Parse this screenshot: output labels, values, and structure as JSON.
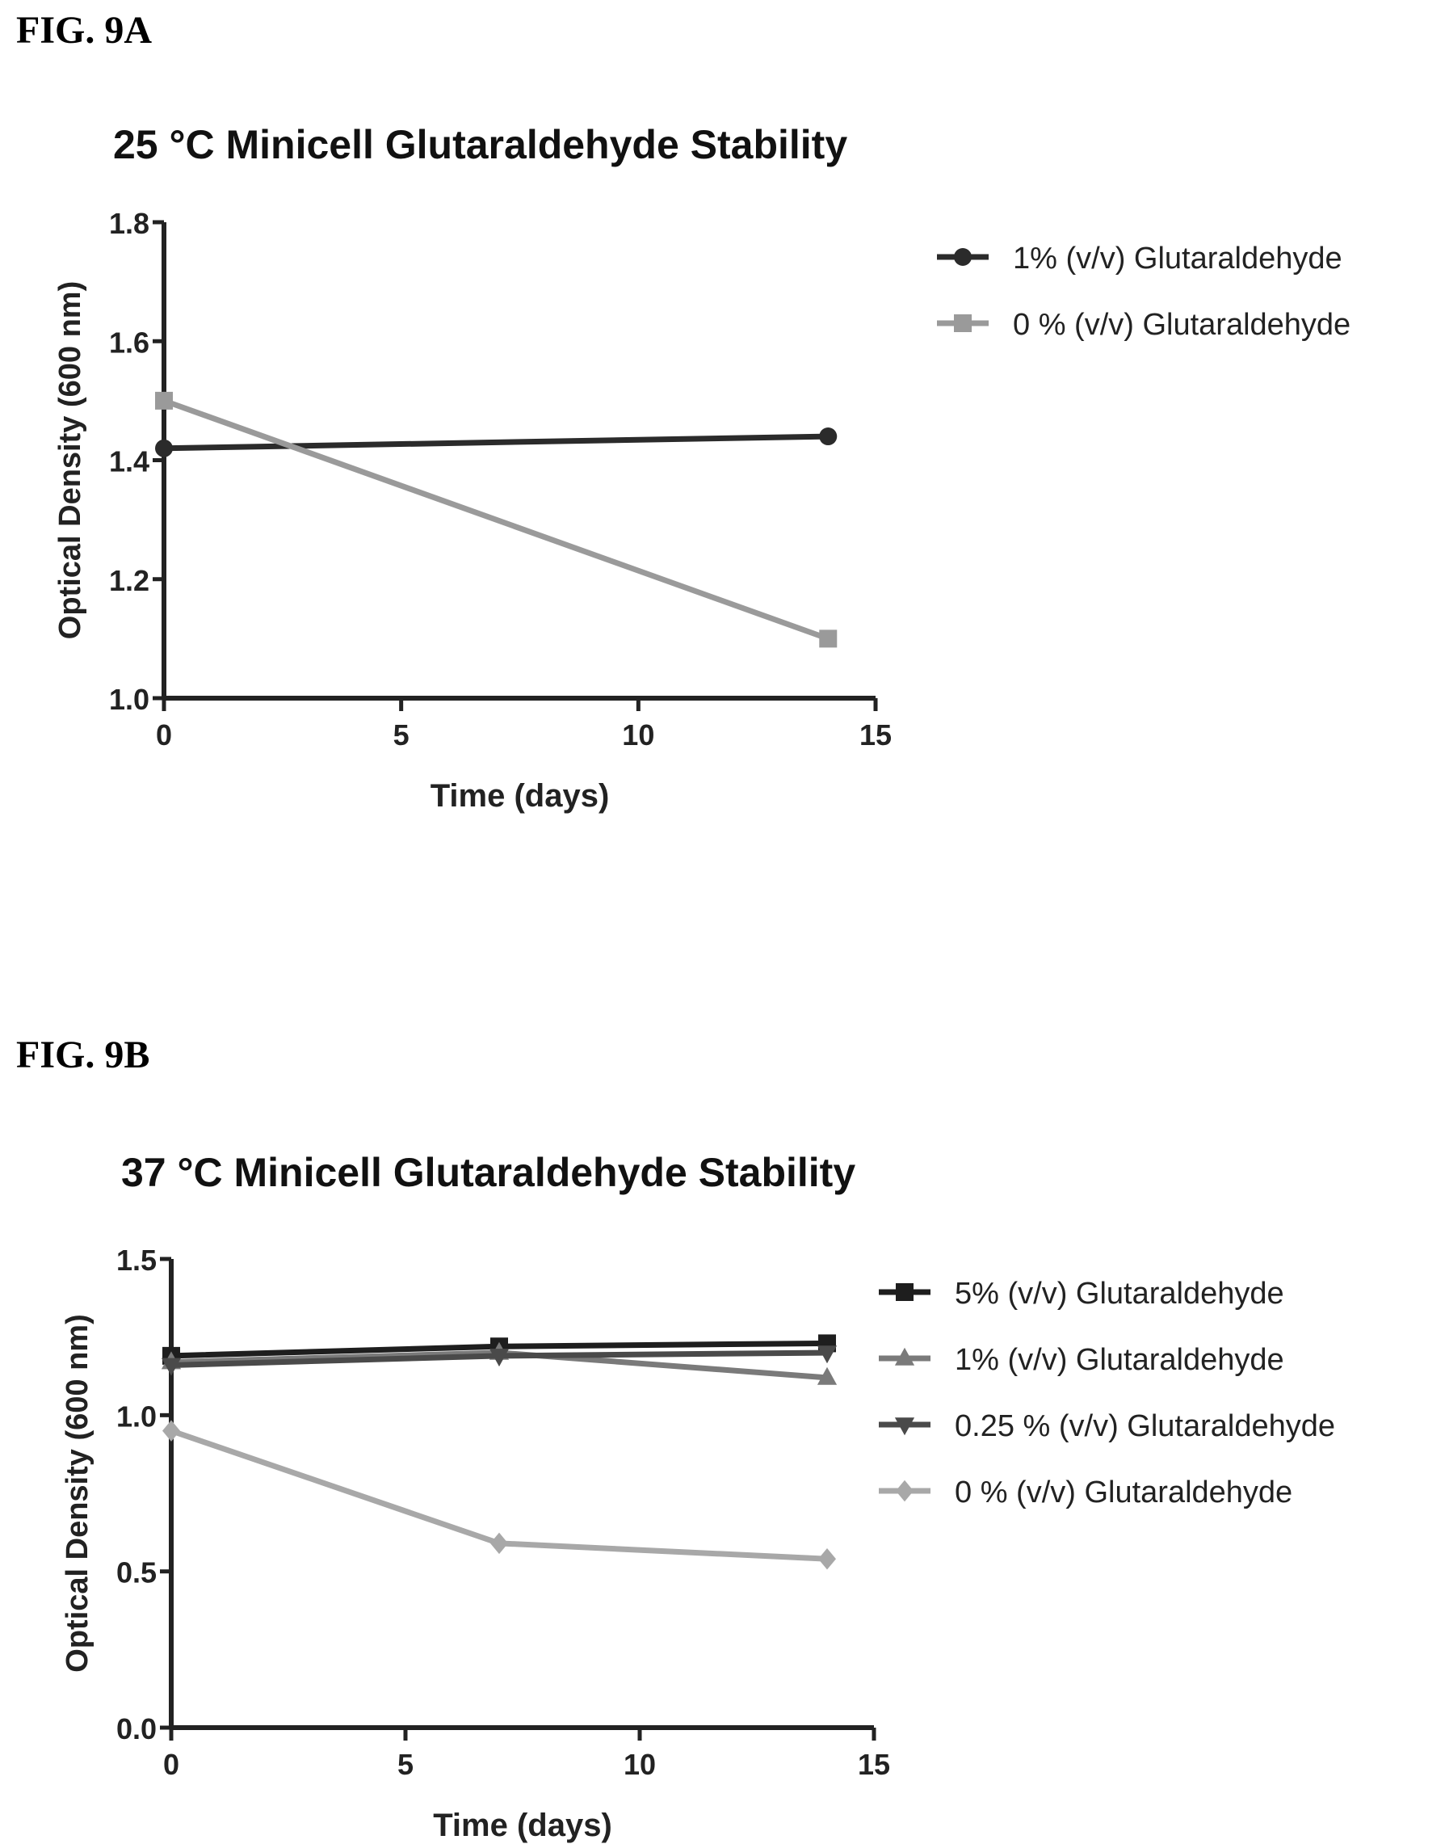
{
  "figures": [
    {
      "label": "FIG. 9A",
      "title": "25 °C Minicell Glutaraldehyde Stability",
      "chart_data": {
        "type": "line",
        "title": "25 °C Minicell Glutaraldehyde Stability",
        "xlabel": "Time (days)",
        "ylabel": "Optical Density (600 nm)",
        "xlim": [
          0,
          15
        ],
        "ylim": [
          1.0,
          1.8
        ],
        "xticks": [
          "0",
          "5",
          "10",
          "15"
        ],
        "yticks": [
          "1.0",
          "1.2",
          "1.4",
          "1.6",
          "1.8"
        ],
        "grid": false,
        "legend_position": "right",
        "series": [
          {
            "name": "1% (v/v) Glutaraldehyde",
            "marker": "circle",
            "color": "#2b2b2b",
            "x": [
              0,
              14
            ],
            "y": [
              1.42,
              1.44
            ]
          },
          {
            "name": "0 % (v/v) Glutaraldehyde",
            "marker": "square",
            "color": "#9a9a9a",
            "x": [
              0,
              14
            ],
            "y": [
              1.5,
              1.1
            ]
          }
        ]
      }
    },
    {
      "label": "FIG. 9B",
      "title": "37 °C Minicell Glutaraldehyde Stability",
      "chart_data": {
        "type": "line",
        "title": "37 °C Minicell Glutaraldehyde Stability",
        "xlabel": "Time (days)",
        "ylabel": "Optical Density (600 nm)",
        "xlim": [
          0,
          15
        ],
        "ylim": [
          0.0,
          1.5
        ],
        "xticks": [
          "0",
          "5",
          "10",
          "15"
        ],
        "yticks": [
          "0.0",
          "0.5",
          "1.0",
          "1.5"
        ],
        "grid": false,
        "legend_position": "right",
        "series": [
          {
            "name": "5% (v/v) Glutaraldehyde",
            "marker": "square",
            "color": "#1e1e1e",
            "x": [
              0,
              7,
              14
            ],
            "y": [
              1.19,
              1.22,
              1.23
            ]
          },
          {
            "name": "1% (v/v) Glutaraldehyde",
            "marker": "triangle-up",
            "color": "#7a7a7a",
            "x": [
              0,
              7,
              14
            ],
            "y": [
              1.17,
              1.2,
              1.12
            ]
          },
          {
            "name": "0.25 % (v/v) Glutaraldehyde",
            "marker": "triangle-down",
            "color": "#4a4a4a",
            "x": [
              0,
              7,
              14
            ],
            "y": [
              1.16,
              1.19,
              1.2
            ]
          },
          {
            "name": "0 % (v/v) Glutaraldehyde",
            "marker": "diamond",
            "color": "#a8a8a8",
            "x": [
              0,
              7,
              14
            ],
            "y": [
              0.95,
              0.59,
              0.54
            ]
          }
        ]
      }
    }
  ]
}
